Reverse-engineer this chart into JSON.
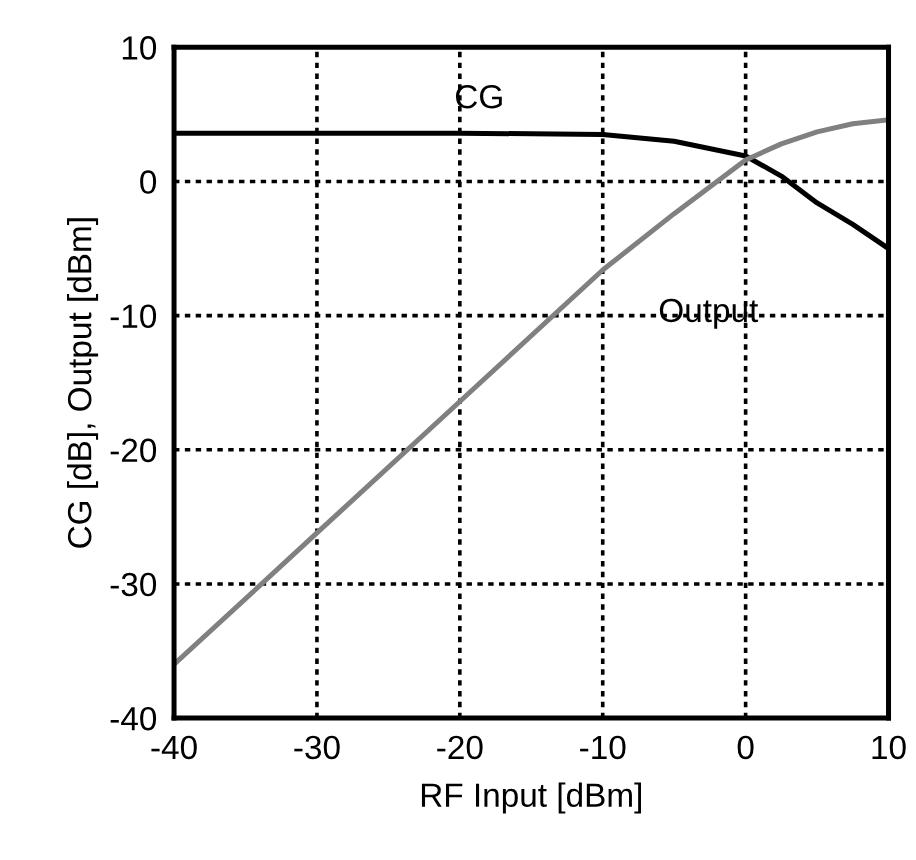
{
  "chart_data": {
    "type": "line",
    "xlabel": "RF Input [dBm]",
    "ylabel": "CG [dB], Output [dBm]",
    "x": [
      -40,
      -30,
      -20,
      -10,
      -5,
      0,
      2.5,
      5,
      7.5,
      10
    ],
    "series": [
      {
        "name": "CG",
        "color": "#000000",
        "values": [
          3.6,
          3.6,
          3.6,
          3.5,
          3.0,
          1.9,
          0.4,
          -1.6,
          -3.2,
          -5.0
        ]
      },
      {
        "name": "Output",
        "color": "#808080",
        "values": [
          -36,
          -26.2,
          -16.4,
          -6.6,
          -2.4,
          1.6,
          2.8,
          3.7,
          4.3,
          4.6
        ]
      }
    ],
    "xlim": [
      -40,
      10
    ],
    "ylim": [
      -40,
      10
    ],
    "xticks": [
      -40,
      -30,
      -20,
      -10,
      0,
      10
    ],
    "yticks": [
      -40,
      -30,
      -20,
      -10,
      0,
      10
    ],
    "grid": true,
    "line_style": "solid",
    "marker": "none"
  }
}
